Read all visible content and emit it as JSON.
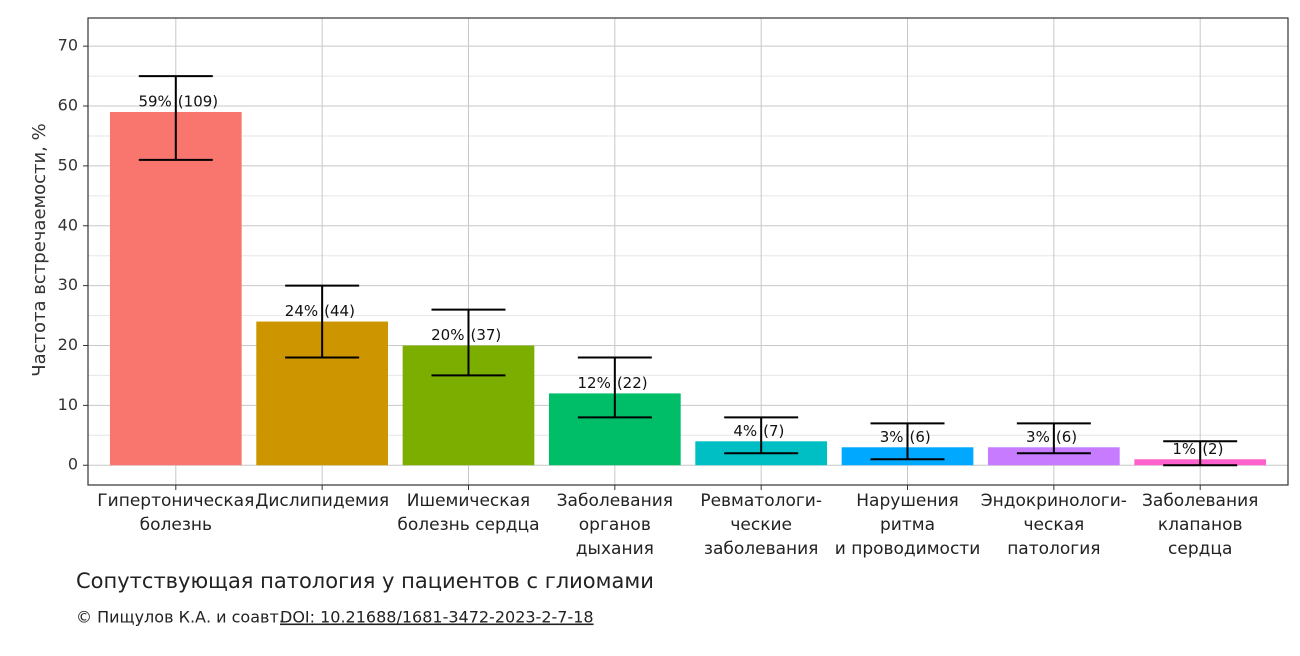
{
  "chart_data": {
    "type": "bar",
    "y_label": "Частота встречаемости, %",
    "categories": [
      [
        "Гипертоническая",
        "болезнь"
      ],
      [
        "Дислипидемия"
      ],
      [
        "Ишемическая",
        "болезнь сердца"
      ],
      [
        "Заболевания",
        "органов",
        "дыхания"
      ],
      [
        "Ревматологи-",
        "ческие",
        "заболевания"
      ],
      [
        "Нарушения",
        "ритма",
        "и проводимости"
      ],
      [
        "Эндокринологи-",
        "ческая",
        "патология"
      ],
      [
        "Заболевания",
        "клапанов",
        "сердца"
      ]
    ],
    "values": [
      59,
      24,
      20,
      12,
      4,
      3,
      3,
      1
    ],
    "value_labels": [
      "59%",
      "24%",
      "20%",
      "12%",
      "4%",
      "3%",
      "3%",
      "1%"
    ],
    "count_labels": [
      "(109)",
      "(44)",
      "(37)",
      "(22)",
      "(7)",
      "(6)",
      "(6)",
      "(2)"
    ],
    "error_low": [
      51,
      18,
      15,
      8,
      2,
      1,
      2,
      0
    ],
    "error_high": [
      65,
      30,
      26,
      18,
      8,
      7,
      7,
      4
    ],
    "colors": [
      "#f8766d",
      "#cd9600",
      "#7cae00",
      "#00be67",
      "#00bfc4",
      "#00a9ff",
      "#c77cff",
      "#ff61cc"
    ],
    "ylim": [
      -3.3,
      74.7
    ],
    "yticks": [
      0,
      10,
      20,
      30,
      40,
      50,
      60,
      70
    ],
    "grid": true,
    "caption": "Сопутствующая патология у пациентов с глиомами",
    "credit": "© Пищулов К.А. и соавт.",
    "doi": "DOI: 10.21688/1681-3472-2023-2-7-18"
  }
}
